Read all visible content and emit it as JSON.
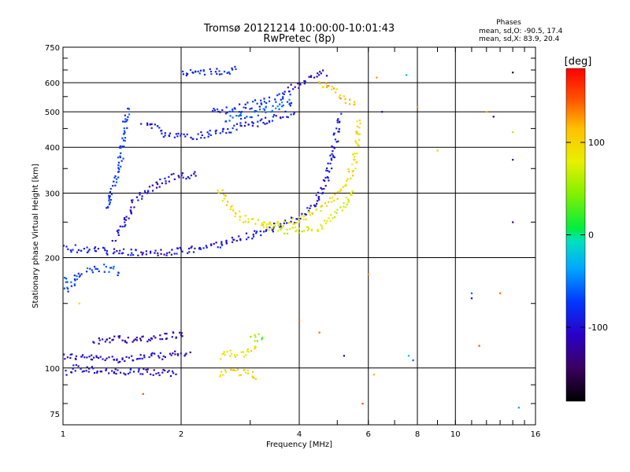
{
  "header": {
    "title_line1": "Tromsø 20121214 10:00:00-10:01:43",
    "title_line2": "RwPretec (8p)"
  },
  "stats": {
    "heading": "Phases",
    "line1": "mean, sd,O: -90.5, 17.4",
    "line2": "mean, sd,X:  83.9, 20.4"
  },
  "colorbar": {
    "unit": "[deg]",
    "range": [
      -180,
      180
    ],
    "ticks": [
      {
        "value": 100,
        "label": "100"
      },
      {
        "value": 0,
        "label": "0"
      },
      {
        "value": -100,
        "label": "-100"
      }
    ]
  },
  "chart_data": {
    "type": "scatter",
    "title": "Tromsø 20121214 10:00:00-10:01:43",
    "subtitle": "RwPretec (8p)",
    "xlabel": "Frequency [MHz]",
    "ylabel": "Stationary phase Virtual Height [km]",
    "x_scale": "log",
    "y_scale": "log",
    "xlim": [
      1,
      16
    ],
    "ylim": [
      70,
      750
    ],
    "grid": true,
    "x_ticks": [
      {
        "value": 1,
        "label": "1"
      },
      {
        "value": 2,
        "label": "2"
      },
      {
        "value": 4,
        "label": "4"
      },
      {
        "value": 6,
        "label": "6"
      },
      {
        "value": 8,
        "label": "8"
      },
      {
        "value": 10,
        "label": "10"
      },
      {
        "value": 16,
        "label": "16"
      }
    ],
    "y_ticks": [
      {
        "value": 75,
        "label": "75"
      },
      {
        "value": 100,
        "label": "100"
      },
      {
        "value": 200,
        "label": "200"
      },
      {
        "value": 300,
        "label": "300"
      },
      {
        "value": 400,
        "label": "400"
      },
      {
        "value": 500,
        "label": "500"
      },
      {
        "value": 600,
        "label": "600"
      },
      {
        "value": 750,
        "label": "750"
      }
    ],
    "colorbar_label": "[deg]",
    "color_range": [
      -180,
      180
    ],
    "traces": [
      {
        "points": [
          [
            1.0,
            108
          ],
          [
            1.1,
            107
          ],
          [
            1.25,
            106
          ],
          [
            1.4,
            106
          ],
          [
            1.6,
            107
          ],
          [
            1.8,
            108
          ],
          [
            1.95,
            109
          ],
          [
            2.1,
            108
          ]
        ],
        "phase": -105
      },
      {
        "points": [
          [
            1.02,
            97
          ],
          [
            1.05,
            100
          ],
          [
            1.3,
            98
          ],
          [
            1.4,
            97
          ],
          [
            1.65,
            98
          ],
          [
            1.75,
            97
          ],
          [
            1.95,
            96
          ]
        ],
        "phase": -100
      },
      {
        "points": [
          [
            1.2,
            118
          ],
          [
            1.35,
            121
          ],
          [
            1.55,
            119
          ],
          [
            1.8,
            122
          ],
          [
            1.95,
            123
          ],
          [
            2.05,
            125
          ]
        ],
        "phase": -110
      },
      {
        "points": [
          [
            1.0,
            215
          ],
          [
            1.05,
            212
          ],
          [
            1.3,
            208
          ],
          [
            1.5,
            206
          ],
          [
            1.7,
            206
          ],
          [
            1.9,
            207
          ],
          [
            2.0,
            208
          ],
          [
            2.3,
            213
          ],
          [
            2.6,
            220
          ],
          [
            2.9,
            228
          ],
          [
            3.3,
            238
          ],
          [
            3.7,
            248
          ],
          [
            4.1,
            262
          ],
          [
            4.4,
            282
          ],
          [
            4.6,
            310
          ],
          [
            4.8,
            360
          ],
          [
            4.95,
            420
          ],
          [
            5.1,
            490
          ]
        ],
        "phase": -95
      },
      {
        "points": [
          [
            1.0,
            175
          ],
          [
            1.02,
            165
          ],
          [
            1.05,
            168
          ],
          [
            1.1,
            180
          ],
          [
            1.2,
            185
          ],
          [
            1.3,
            188
          ],
          [
            1.4,
            182
          ]
        ],
        "phase": -70
      },
      {
        "points": [
          [
            1.3,
            270
          ],
          [
            1.35,
            320
          ],
          [
            1.4,
            370
          ],
          [
            1.42,
            420
          ],
          [
            1.45,
            470
          ],
          [
            1.47,
            510
          ]
        ],
        "phase": -75
      },
      {
        "points": [
          [
            1.35,
            225
          ],
          [
            1.45,
            250
          ],
          [
            1.5,
            280
          ],
          [
            1.6,
            300
          ],
          [
            1.75,
            320
          ],
          [
            1.9,
            330
          ],
          [
            2.05,
            335
          ],
          [
            2.2,
            338
          ]
        ],
        "phase": -100
      },
      {
        "points": [
          [
            1.6,
            470
          ],
          [
            1.75,
            445
          ],
          [
            1.9,
            430
          ],
          [
            2.0,
            430
          ],
          [
            2.2,
            430
          ],
          [
            2.5,
            440
          ],
          [
            2.8,
            455
          ],
          [
            3.2,
            470
          ],
          [
            3.6,
            485
          ],
          [
            3.9,
            500
          ]
        ],
        "phase": -90
      },
      {
        "points": [
          [
            2.0,
            640
          ],
          [
            2.15,
            635
          ],
          [
            2.35,
            640
          ],
          [
            2.6,
            648
          ],
          [
            2.8,
            652
          ]
        ],
        "phase": -80
      },
      {
        "points": [
          [
            2.4,
            500
          ],
          [
            2.6,
            505
          ],
          [
            2.8,
            510
          ],
          [
            3.0,
            520
          ],
          [
            3.4,
            540
          ],
          [
            3.8,
            560
          ]
        ],
        "phase": -85
      },
      {
        "points": [
          [
            2.6,
            480
          ],
          [
            2.8,
            485
          ],
          [
            3.0,
            490
          ],
          [
            3.3,
            505
          ],
          [
            3.6,
            520
          ],
          [
            3.9,
            540
          ]
        ],
        "phase": -60
      },
      {
        "points": [
          [
            3.7,
            570
          ],
          [
            3.9,
            590
          ],
          [
            4.1,
            605
          ],
          [
            4.3,
            620
          ],
          [
            4.5,
            635
          ],
          [
            4.7,
            640
          ]
        ],
        "phase": -110
      },
      {
        "points": [
          [
            2.5,
            305
          ],
          [
            2.7,
            270
          ],
          [
            2.9,
            255
          ],
          [
            3.1,
            250
          ],
          [
            3.4,
            248
          ],
          [
            3.8,
            250
          ],
          [
            4.2,
            262
          ],
          [
            4.6,
            278
          ],
          [
            5.0,
            295
          ],
          [
            5.3,
            320
          ],
          [
            5.5,
            360
          ],
          [
            5.6,
            420
          ],
          [
            5.7,
            480
          ]
        ],
        "phase": 95
      },
      {
        "points": [
          [
            3.2,
            245
          ],
          [
            3.6,
            238
          ],
          [
            4.0,
            236
          ],
          [
            4.4,
            240
          ],
          [
            4.8,
            255
          ],
          [
            5.2,
            275
          ],
          [
            5.5,
            310
          ]
        ],
        "phase": 75
      },
      {
        "points": [
          [
            2.5,
            108
          ],
          [
            2.65,
            110
          ],
          [
            2.85,
            109
          ],
          [
            3.05,
            112
          ],
          [
            3.15,
            114
          ]
        ],
        "phase": 90
      },
      {
        "points": [
          [
            2.5,
            96
          ],
          [
            2.7,
            98
          ],
          [
            2.95,
            97
          ],
          [
            3.15,
            95
          ]
        ],
        "phase": 100
      },
      {
        "points": [
          [
            3.05,
            120
          ],
          [
            3.15,
            122
          ],
          [
            3.2,
            118
          ]
        ],
        "phase": 40
      },
      {
        "points": [
          [
            4.5,
            600
          ],
          [
            4.8,
            580
          ],
          [
            5.0,
            560
          ],
          [
            5.3,
            540
          ],
          [
            5.6,
            520
          ]
        ],
        "phase": 110
      }
    ],
    "scatter_points": [
      {
        "x": 6.5,
        "y": 500,
        "phase": -120
      },
      {
        "x": 7.5,
        "y": 630,
        "phase": -20
      },
      {
        "x": 8.0,
        "y": 515,
        "phase": 130
      },
      {
        "x": 12.0,
        "y": 500,
        "phase": 120
      },
      {
        "x": 12.5,
        "y": 485,
        "phase": -160
      },
      {
        "x": 14.0,
        "y": 440,
        "phase": 60
      },
      {
        "x": 14.0,
        "y": 370,
        "phase": -130
      },
      {
        "x": 14.0,
        "y": 250,
        "phase": -140
      },
      {
        "x": 9.0,
        "y": 392,
        "phase": 110
      },
      {
        "x": 11.0,
        "y": 160,
        "phase": -60
      },
      {
        "x": 11.0,
        "y": 155,
        "phase": -110
      },
      {
        "x": 6.0,
        "y": 180,
        "phase": 130
      },
      {
        "x": 7.6,
        "y": 108,
        "phase": -20
      },
      {
        "x": 7.8,
        "y": 105,
        "phase": -60
      },
      {
        "x": 11.5,
        "y": 115,
        "phase": 150
      },
      {
        "x": 14.5,
        "y": 78,
        "phase": -40
      },
      {
        "x": 5.8,
        "y": 80,
        "phase": 150
      },
      {
        "x": 6.2,
        "y": 96,
        "phase": 120
      },
      {
        "x": 6.3,
        "y": 620,
        "phase": 130
      },
      {
        "x": 4.5,
        "y": 125,
        "phase": 140
      },
      {
        "x": 1.6,
        "y": 85,
        "phase": 150
      },
      {
        "x": 4.0,
        "y": 135,
        "phase": 140
      },
      {
        "x": 13.0,
        "y": 160,
        "phase": 140
      },
      {
        "x": 5.2,
        "y": 108,
        "phase": -110
      },
      {
        "x": 1.1,
        "y": 150,
        "phase": 70
      },
      {
        "x": 14.0,
        "y": 640,
        "phase": -160
      }
    ]
  }
}
